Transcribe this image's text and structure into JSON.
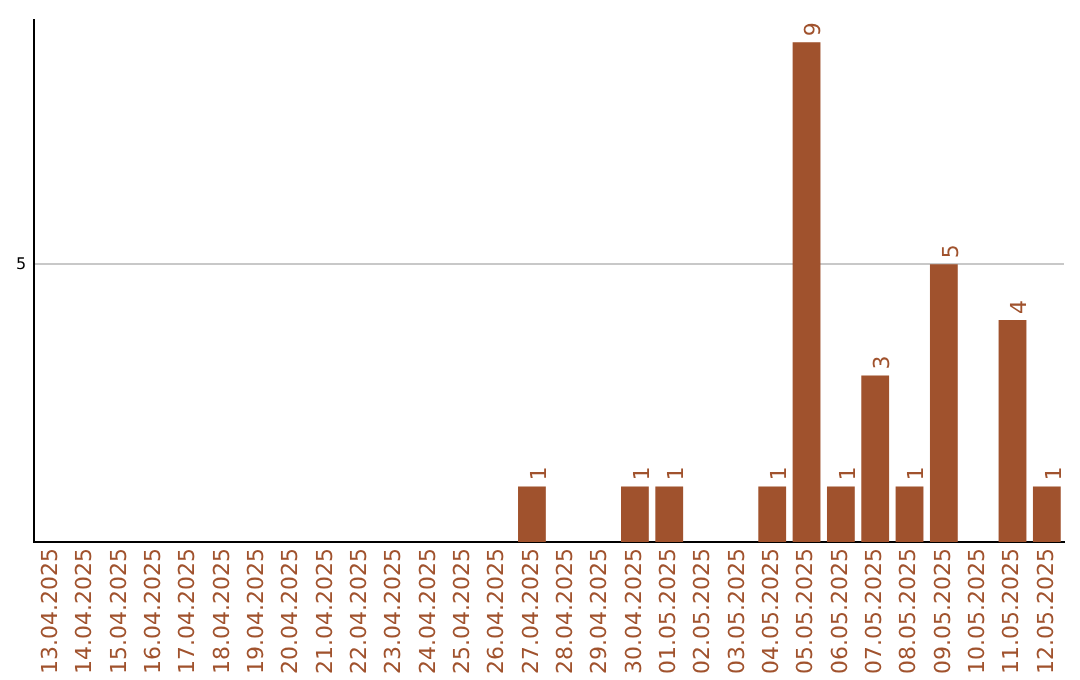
{
  "chart_data": {
    "type": "bar",
    "categories": [
      "13.04.2025",
      "14.04.2025",
      "15.04.2025",
      "16.04.2025",
      "17.04.2025",
      "18.04.2025",
      "19.04.2025",
      "20.04.2025",
      "21.04.2025",
      "22.04.2025",
      "23.04.2025",
      "24.04.2025",
      "25.04.2025",
      "26.04.2025",
      "27.04.2025",
      "28.04.2025",
      "29.04.2025",
      "30.04.2025",
      "01.05.2025",
      "02.05.2025",
      "03.05.2025",
      "04.05.2025",
      "05.05.2025",
      "06.05.2025",
      "07.05.2025",
      "08.05.2025",
      "09.05.2025",
      "10.05.2025",
      "11.05.2025",
      "12.05.2025"
    ],
    "values": [
      null,
      null,
      null,
      null,
      null,
      null,
      null,
      null,
      null,
      null,
      null,
      null,
      null,
      null,
      1,
      null,
      null,
      1,
      1,
      null,
      null,
      1,
      9,
      1,
      3,
      1,
      5,
      null,
      4,
      1
    ],
    "data_labels": true,
    "color": "#a0522d",
    "ylim": [
      0,
      9.4
    ],
    "yticks": [
      5
    ],
    "grid": "y",
    "legend": false
  }
}
